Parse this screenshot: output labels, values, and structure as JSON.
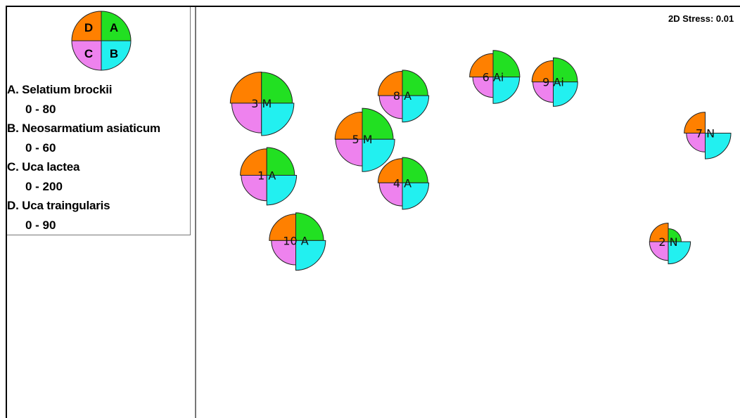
{
  "stress_label": "2D Stress: 0.01",
  "colors": {
    "A": "#22e022",
    "B": "#22f0f0",
    "C": "#ee82ee",
    "D": "#ff8000"
  },
  "legend": {
    "quadrant_letters": [
      "D",
      "A",
      "C",
      "B"
    ],
    "entries": [
      {
        "key": "A",
        "name": "A. Selatium brockii",
        "range": "0 - 80"
      },
      {
        "key": "B",
        "name": "B. Neosarmatium asiaticum",
        "range": "0 - 60"
      },
      {
        "key": "C",
        "name": "C. Uca lactea",
        "range": "0 - 200"
      },
      {
        "key": "D",
        "name": "D. Uca traingularis",
        "range": "0 - 90"
      }
    ]
  },
  "chart_data": {
    "type": "scatter",
    "subtype": "MDS bubble plot with quadrant segments",
    "xlim": [
      0,
      100
    ],
    "ylim": [
      0,
      100
    ],
    "points": [
      {
        "label": "3 M",
        "x": 10.9,
        "y": 76.5,
        "A": 62,
        "B": 51,
        "C": 143,
        "D": 71
      },
      {
        "label": "5 M",
        "x": 30.0,
        "y": 67.0,
        "A": 62,
        "B": 51,
        "C": 115,
        "D": 54
      },
      {
        "label": "1 A",
        "x": 11.9,
        "y": 57.5,
        "A": 50,
        "B": 43,
        "C": 105,
        "D": 51
      },
      {
        "label": "10 A",
        "x": 17.4,
        "y": 40.3,
        "A": 50,
        "B": 43,
        "C": 96,
        "D": 51
      },
      {
        "label": "8 A",
        "x": 37.6,
        "y": 78.5,
        "A": 42,
        "B": 34,
        "C": 86,
        "D": 43
      },
      {
        "label": "4 A",
        "x": 37.6,
        "y": 55.5,
        "A": 42,
        "B": 34,
        "C": 86,
        "D": 43
      },
      {
        "label": "6 Ai",
        "x": 54.8,
        "y": 83.4,
        "A": 46,
        "B": 34,
        "C": 67,
        "D": 40
      },
      {
        "label": "9 Ai",
        "x": 66.2,
        "y": 82.1,
        "A": 38,
        "B": 29,
        "C": 67,
        "D": 33
      },
      {
        "label": "7 N",
        "x": 95.0,
        "y": 68.6,
        "A": 0,
        "B": 32,
        "C": 57,
        "D": 32
      },
      {
        "label": "2 N",
        "x": 88.0,
        "y": 40.0,
        "A": 11,
        "B": 24,
        "C": 57,
        "D": 25
      }
    ]
  }
}
